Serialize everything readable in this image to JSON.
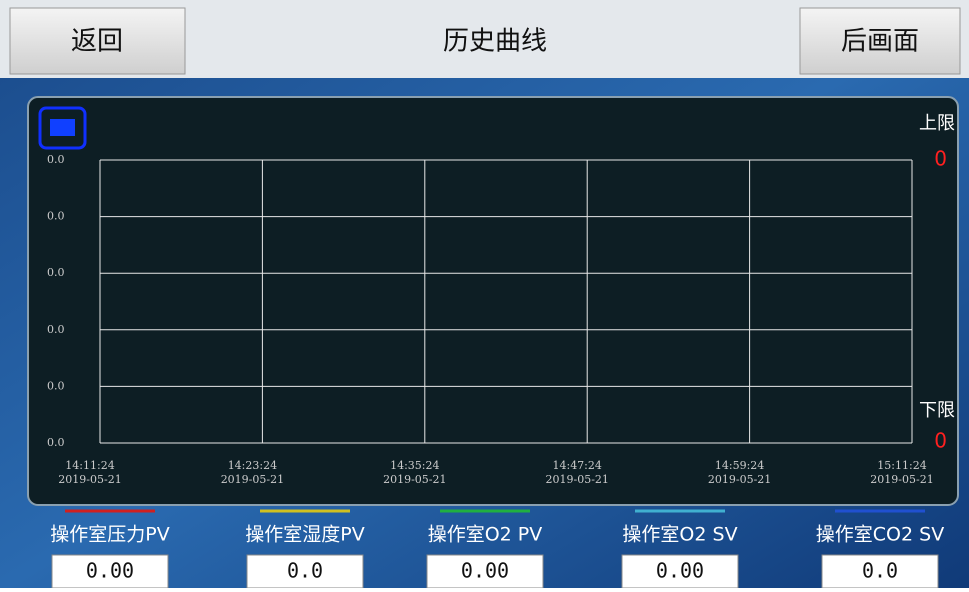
{
  "header": {
    "back": "返回",
    "title": "历史曲线",
    "next": "后画面"
  },
  "trend": {
    "y_labels": [
      "0.0",
      "0.0",
      "0.0",
      "0.0",
      "0.0",
      "0.0"
    ],
    "x_labels": [
      {
        "time": "14:11:24",
        "date": "2019-05-21"
      },
      {
        "time": "14:23:24",
        "date": "2019-05-21"
      },
      {
        "time": "14:35:24",
        "date": "2019-05-21"
      },
      {
        "time": "14:47:24",
        "date": "2019-05-21"
      },
      {
        "time": "14:59:24",
        "date": "2019-05-21"
      },
      {
        "time": "15:11:24",
        "date": "2019-05-21"
      }
    ],
    "upper_label": "上限",
    "upper_value": "0",
    "lower_label": "下限",
    "lower_value": "0"
  },
  "channels": [
    {
      "name": "操作室压力PV",
      "value": "0.00",
      "color": "#d02020"
    },
    {
      "name": "操作室湿度PV",
      "value": "0.0",
      "color": "#d0c020"
    },
    {
      "name": "操作室O2 PV",
      "value": "0.00",
      "color": "#20b040"
    },
    {
      "name": "操作室O2 SV",
      "value": "0.00",
      "color": "#40b0d0"
    },
    {
      "name": "操作室CO2 SV",
      "value": "0.0",
      "color": "#2050d0"
    }
  ]
}
